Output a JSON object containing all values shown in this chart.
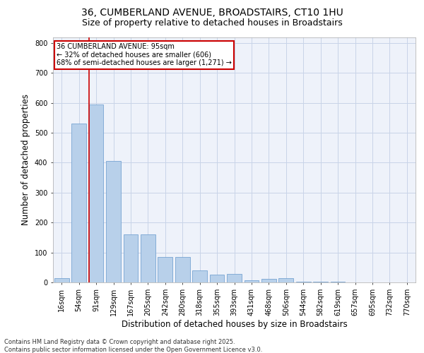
{
  "title_line1": "36, CUMBERLAND AVENUE, BROADSTAIRS, CT10 1HU",
  "title_line2": "Size of property relative to detached houses in Broadstairs",
  "xlabel": "Distribution of detached houses by size in Broadstairs",
  "ylabel": "Number of detached properties",
  "categories": [
    "16sqm",
    "54sqm",
    "91sqm",
    "129sqm",
    "167sqm",
    "205sqm",
    "242sqm",
    "280sqm",
    "318sqm",
    "355sqm",
    "393sqm",
    "431sqm",
    "468sqm",
    "506sqm",
    "544sqm",
    "582sqm",
    "619sqm",
    "657sqm",
    "695sqm",
    "732sqm",
    "770sqm"
  ],
  "values": [
    15,
    530,
    595,
    405,
    160,
    160,
    85,
    85,
    40,
    25,
    28,
    8,
    12,
    13,
    3,
    3,
    2,
    1,
    1,
    1,
    1
  ],
  "bar_color": "#b8d0ea",
  "bar_edge_color": "#6699cc",
  "vline_color": "#cc0000",
  "ylim": [
    0,
    820
  ],
  "yticks": [
    0,
    100,
    200,
    300,
    400,
    500,
    600,
    700,
    800
  ],
  "annotation_box_title": "36 CUMBERLAND AVENUE: 95sqm",
  "annotation_line2": "← 32% of detached houses are smaller (606)",
  "annotation_line3": "68% of semi-detached houses are larger (1,271) →",
  "annotation_box_color": "#cc0000",
  "bg_color": "#eef2fa",
  "footer_line1": "Contains HM Land Registry data © Crown copyright and database right 2025.",
  "footer_line2": "Contains public sector information licensed under the Open Government Licence v3.0.",
  "grid_color": "#c8d4e8",
  "title_fontsize": 10,
  "subtitle_fontsize": 9,
  "axis_label_fontsize": 8.5,
  "tick_fontsize": 7,
  "annotation_fontsize": 7,
  "footer_fontsize": 6
}
